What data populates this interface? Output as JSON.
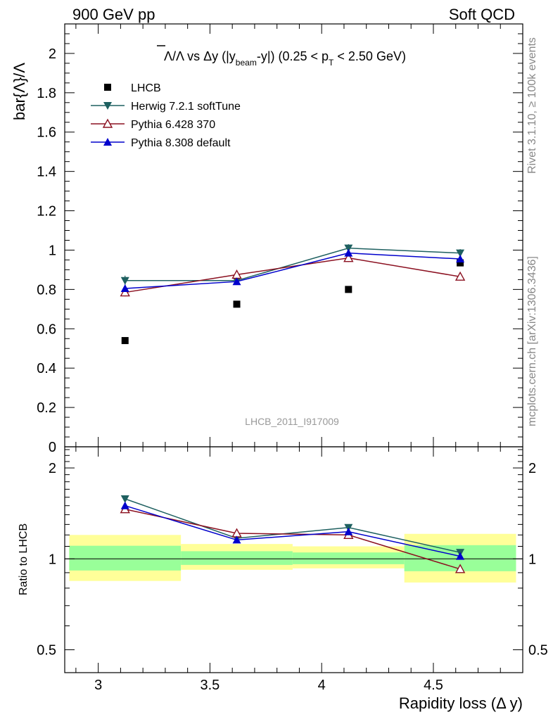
{
  "header": {
    "left": "900 GeV pp",
    "right": "Soft QCD"
  },
  "side_labels": {
    "rivet": "Rivet 3.1.10, ≥ 100k events",
    "mcplots": "mcplots.cern.ch [arXiv:1306.3436]"
  },
  "watermark": "LHCB_2011_I917009",
  "colors": {
    "LHCB": "#000000",
    "Herwig": "#1e6060",
    "Pythia6": "#8b1020",
    "Pythia8": "#0000cc",
    "band_inner": "#99ff99",
    "band_outer": "#ffff99"
  },
  "chart_data": [
    {
      "type": "scatter",
      "panel": "main",
      "title_parts": {
        "prefix": "Λ/Λ vs Δy (|y",
        "sub1": "beam",
        "mid": "-y|) (0.25 < p",
        "sub2": "T",
        "suffix": " < 2.50 GeV)"
      },
      "xlabel": "Rapidity loss (Δ y)",
      "ylabel": "bar{Λ}/Λ",
      "xlim": [
        2.85,
        4.9
      ],
      "ylim": [
        0,
        2.15
      ],
      "yticks": [
        0,
        0.2,
        0.4,
        0.6,
        0.8,
        1,
        1.2,
        1.4,
        1.6,
        1.8,
        2
      ],
      "ytick_labels": [
        "0",
        "0.2",
        "0.4",
        "0.6",
        "0.8",
        "1",
        "1.2",
        "1.4",
        "1.6",
        "1.8",
        "2"
      ],
      "legend_position": "top-left",
      "x": [
        3.12,
        3.62,
        4.12,
        4.62
      ],
      "series": [
        {
          "name": "LHCB",
          "key": "LHCB",
          "marker": "square",
          "values": [
            0.54,
            0.725,
            0.8,
            0.935
          ]
        },
        {
          "name": "Herwig 7.2.1 softTune",
          "key": "Herwig",
          "marker": "triangle-down",
          "values": [
            0.845,
            0.845,
            1.01,
            0.985
          ],
          "errors": [
            0.025,
            0.02,
            0.02,
            0.02
          ]
        },
        {
          "name": "Pythia 6.428 370",
          "key": "Pythia6",
          "marker": "triangle-up-open",
          "values": [
            0.785,
            0.875,
            0.96,
            0.865
          ],
          "errors": [
            0.02,
            0.02,
            0.02,
            0.02
          ]
        },
        {
          "name": "Pythia 8.308 default",
          "key": "Pythia8",
          "marker": "triangle-up",
          "values": [
            0.805,
            0.84,
            0.985,
            0.955
          ],
          "errors": [
            0.015,
            0.015,
            0.015,
            0.015
          ]
        }
      ]
    },
    {
      "type": "scatter",
      "panel": "ratio",
      "ylabel": "Ratio to LHCB",
      "xlabel": "Rapidity loss (Δ y)",
      "xlim": [
        2.85,
        4.9
      ],
      "ylim": [
        0.42,
        2.35
      ],
      "log_y": true,
      "yticks": [
        0.5,
        1,
        2
      ],
      "ytick_labels": [
        "0.5",
        "1",
        "2"
      ],
      "xticks": [
        3,
        3.5,
        4,
        4.5
      ],
      "xtick_labels": [
        "3",
        "3.5",
        "4",
        "4.5"
      ],
      "bins": [
        {
          "lo": 2.87,
          "hi": 3.37,
          "inner": [
            0.915,
            1.105
          ],
          "outer": [
            0.845,
            1.2
          ]
        },
        {
          "lo": 3.37,
          "hi": 3.87,
          "inner": [
            0.955,
            1.06
          ],
          "outer": [
            0.92,
            1.12
          ]
        },
        {
          "lo": 3.87,
          "hi": 4.37,
          "inner": [
            0.96,
            1.05
          ],
          "outer": [
            0.93,
            1.1
          ]
        },
        {
          "lo": 4.37,
          "hi": 4.87,
          "inner": [
            0.91,
            1.11
          ],
          "outer": [
            0.835,
            1.21
          ]
        }
      ],
      "x": [
        3.12,
        3.62,
        4.12,
        4.62
      ],
      "series": [
        {
          "name": "Herwig 7.2.1 softTune",
          "key": "Herwig",
          "marker": "triangle-down",
          "values": [
            1.58,
            1.17,
            1.27,
            1.05
          ]
        },
        {
          "name": "Pythia 6.428 370",
          "key": "Pythia6",
          "marker": "triangle-up-open",
          "values": [
            1.46,
            1.215,
            1.2,
            0.925
          ]
        },
        {
          "name": "Pythia 8.308 default",
          "key": "Pythia8",
          "marker": "triangle-up",
          "values": [
            1.5,
            1.155,
            1.23,
            1.02
          ]
        }
      ]
    }
  ]
}
